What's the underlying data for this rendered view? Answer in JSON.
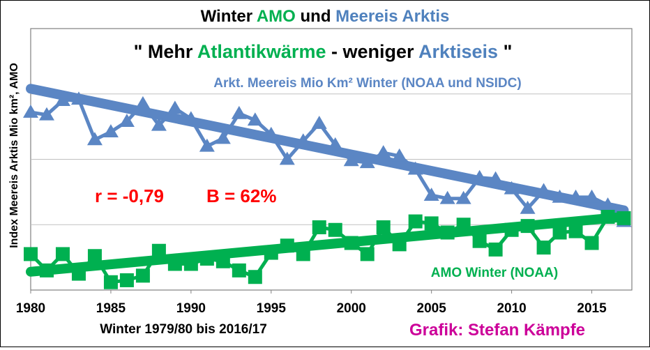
{
  "title": {
    "part1": "Winter ",
    "part2": "AMO",
    "part3": " und ",
    "part4": "Meereis Arktis"
  },
  "subtitle": {
    "part1": "\" Mehr ",
    "part2": "Atlantikwärme",
    "part3": " - weniger ",
    "part4": "Arktiseis",
    "part5": " \""
  },
  "stats": {
    "r": "r = -0,79",
    "b": "B = 62%"
  },
  "ylabel": "Index Meereis Arktis Mio km², AMO",
  "xlabel": "Winter 1979/80 bis 2016/17",
  "credit": "Grafik: Stefan Kämpfe",
  "colors": {
    "ice": "#5B86C4",
    "amo": "#00B050",
    "title_amo": "#00B050",
    "title_ice": "#4F81BD",
    "stats": "#FF0000",
    "credit": "#CC0099",
    "grid": "#C0C0C0"
  },
  "chart_data": {
    "type": "line",
    "xlim": [
      1980,
      2017.5
    ],
    "ylim": [
      0,
      4
    ],
    "yticks_shown": false,
    "grid": "horizontal",
    "x_ticks": [
      "1980",
      "1985",
      "1990",
      "1995",
      "2000",
      "2005",
      "2010",
      "2015"
    ],
    "x": [
      1980,
      1981,
      1982,
      1983,
      1984,
      1985,
      1986,
      1987,
      1988,
      1989,
      1990,
      1991,
      1992,
      1993,
      1994,
      1995,
      1996,
      1997,
      1998,
      1999,
      2000,
      2001,
      2002,
      2003,
      2004,
      2005,
      2006,
      2007,
      2008,
      2009,
      2010,
      2011,
      2012,
      2013,
      2014,
      2015,
      2016,
      2017
    ],
    "series": [
      {
        "name": "Arkt. Meereis Mio Km² Winter (NOAA und NSIDC)",
        "marker": "triangle",
        "values": [
          2.72,
          2.68,
          2.9,
          2.92,
          2.3,
          2.42,
          2.58,
          2.85,
          2.52,
          2.78,
          2.62,
          2.2,
          2.32,
          2.7,
          2.6,
          2.38,
          2.0,
          2.28,
          2.55,
          2.22,
          1.98,
          1.95,
          2.1,
          2.05,
          1.85,
          1.45,
          1.4,
          1.4,
          1.72,
          1.7,
          1.55,
          1.25,
          1.52,
          1.42,
          1.42,
          1.42,
          1.3,
          1.05
        ],
        "trend": [
          3.08,
          1.22
        ]
      },
      {
        "name": "AMO Winter (NOAA)",
        "marker": "square",
        "values": [
          0.55,
          0.3,
          0.55,
          0.25,
          0.52,
          0.12,
          0.15,
          0.22,
          0.6,
          0.4,
          0.4,
          0.48,
          0.44,
          0.3,
          0.2,
          0.57,
          0.68,
          0.55,
          0.96,
          0.92,
          0.72,
          0.55,
          0.96,
          0.7,
          1.05,
          1.02,
          0.88,
          1.0,
          0.75,
          0.62,
          0.92,
          0.98,
          0.65,
          0.88,
          0.9,
          0.72,
          1.12,
          1.1
        ],
        "trend": [
          0.28,
          1.12
        ]
      }
    ],
    "annotations": [
      "Arkt. Meereis Mio Km² Winter (NOAA und NSIDC)",
      "AMO Winter (NOAA)",
      "r = -0,79",
      "B = 62%"
    ]
  }
}
